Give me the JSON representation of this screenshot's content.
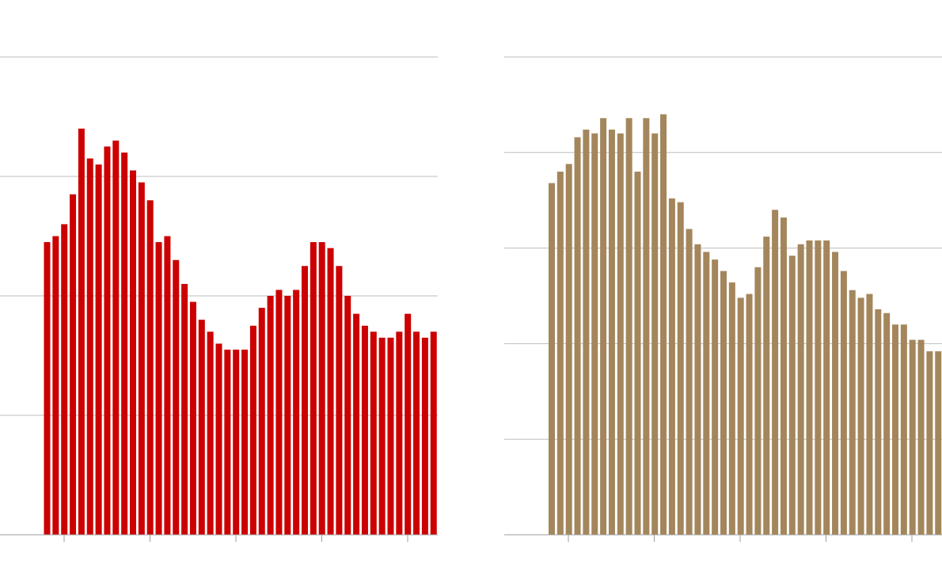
{
  "chart_data": [
    {
      "type": "bar",
      "title": "",
      "xlabel": "",
      "ylabel": "",
      "ylim": [
        0,
        4
      ],
      "grid": true,
      "color": "#cc0000",
      "values": [
        2.45,
        2.5,
        2.6,
        2.85,
        3.4,
        3.15,
        3.1,
        3.25,
        3.3,
        3.2,
        3.05,
        2.95,
        2.8,
        2.45,
        2.5,
        2.3,
        2.1,
        1.95,
        1.8,
        1.7,
        1.6,
        1.55,
        1.55,
        1.55,
        1.75,
        1.9,
        2.0,
        2.05,
        2.0,
        2.05,
        2.25,
        2.45,
        2.45,
        2.4,
        2.25,
        2.0,
        1.85,
        1.75,
        1.7,
        1.65,
        1.65,
        1.7,
        1.85,
        1.7,
        1.65,
        1.7
      ]
    },
    {
      "type": "bar",
      "title": "",
      "xlabel": "",
      "ylabel": "",
      "ylim": [
        0,
        5
      ],
      "grid": true,
      "color": "#a4865c",
      "values": [
        3.68,
        3.8,
        3.88,
        4.16,
        4.24,
        4.2,
        4.36,
        4.24,
        4.2,
        4.36,
        3.8,
        4.36,
        4.2,
        4.4,
        3.52,
        3.48,
        3.2,
        3.04,
        2.96,
        2.88,
        2.76,
        2.64,
        2.48,
        2.52,
        2.8,
        3.12,
        3.4,
        3.32,
        2.92,
        3.04,
        3.08,
        3.08,
        3.08,
        2.96,
        2.76,
        2.56,
        2.48,
        2.52,
        2.36,
        2.32,
        2.2,
        2.2,
        2.04,
        2.04,
        1.92,
        1.92
      ]
    }
  ]
}
